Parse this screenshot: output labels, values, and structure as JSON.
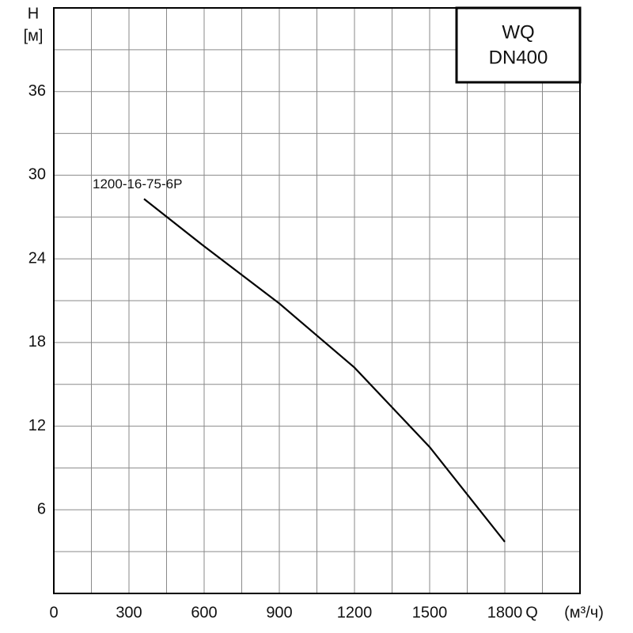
{
  "chart_data": {
    "type": "line",
    "title": "WQ",
    "subtitle": "DN400",
    "y_label": "H",
    "y_unit": "[м]",
    "x_label": "Q",
    "x_unit": "(м³/ч)",
    "xlim": [
      0,
      2100
    ],
    "ylim": [
      0,
      42
    ],
    "xticks": [
      0,
      300,
      600,
      900,
      1200,
      1500,
      1800
    ],
    "yticks": [
      6,
      12,
      18,
      24,
      30,
      36
    ],
    "xgrid": [
      150,
      300,
      450,
      600,
      750,
      900,
      1050,
      1200,
      1350,
      1500,
      1650,
      1800,
      1950
    ],
    "ygrid": [
      3,
      6,
      9,
      12,
      15,
      18,
      21,
      24,
      27,
      30,
      33,
      36,
      39
    ],
    "grid": true,
    "x": [
      360,
      600,
      900,
      1200,
      1500,
      1800
    ],
    "series": [
      {
        "name": "1200-16-75-6P",
        "color": "#000000",
        "values": [
          28.3,
          24.9,
          20.8,
          16.2,
          10.5,
          3.7
        ]
      }
    ]
  }
}
